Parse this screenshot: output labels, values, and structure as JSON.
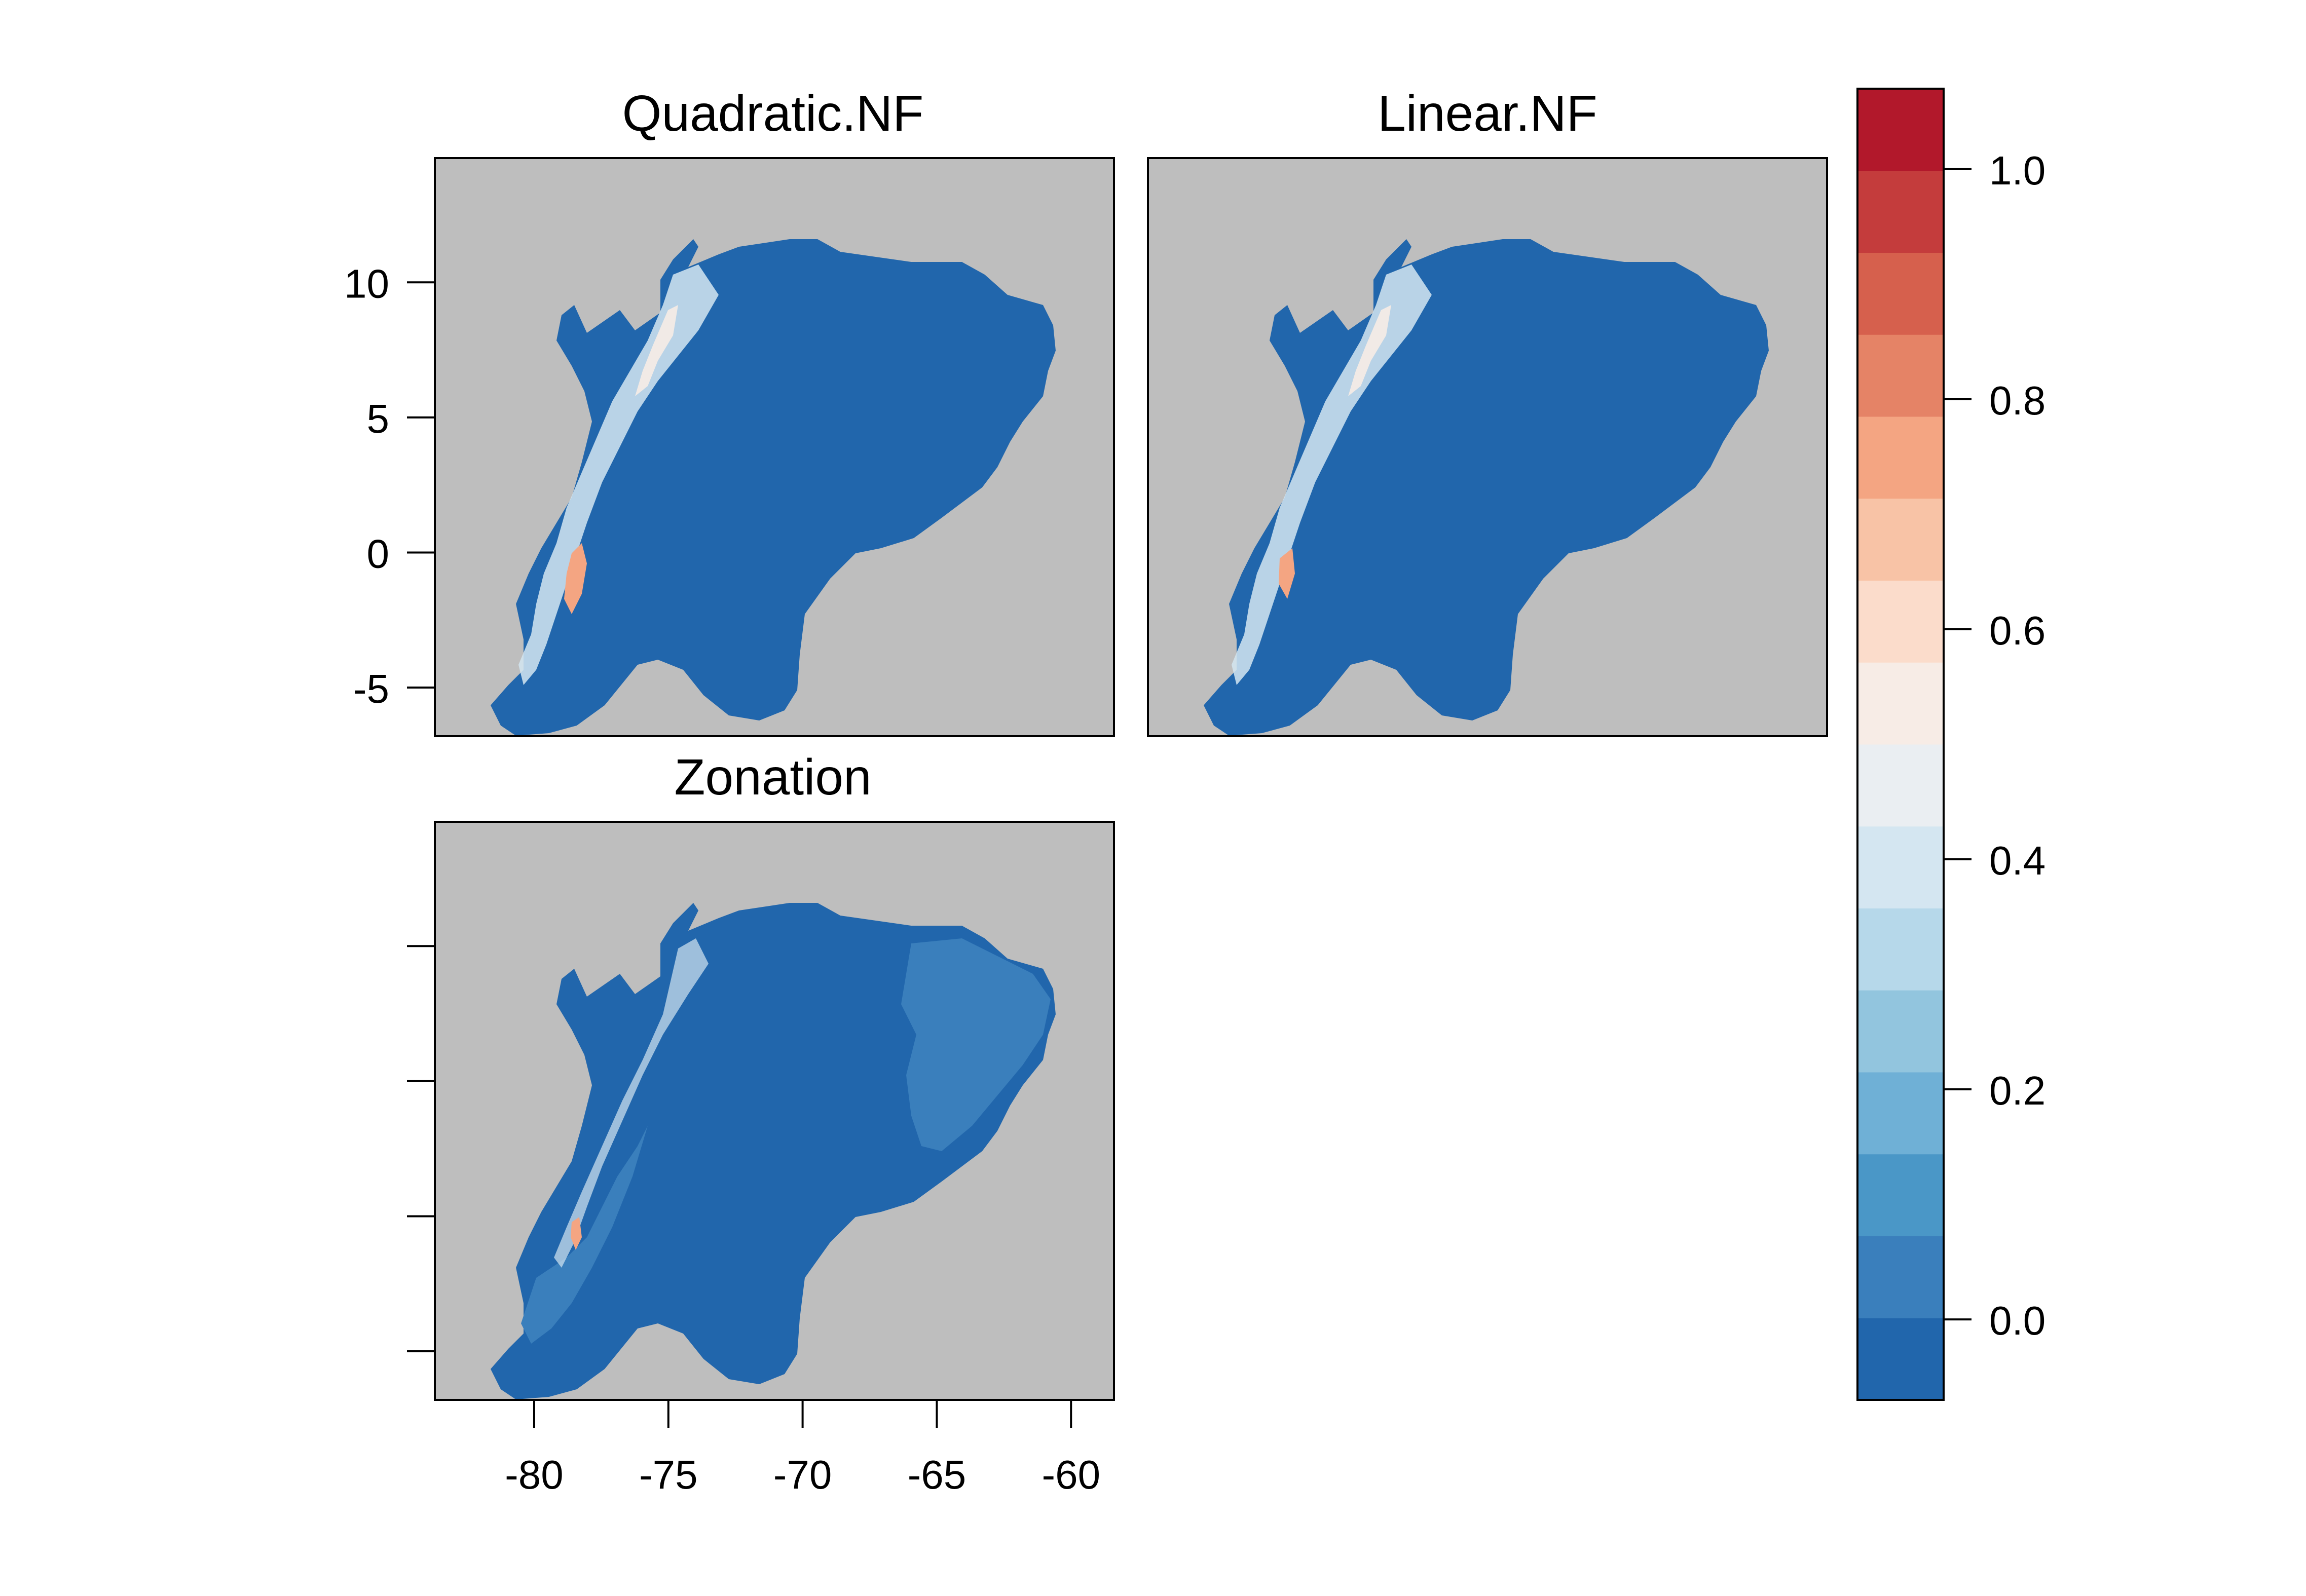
{
  "panels": [
    {
      "title": "Quadratic.NF",
      "variant": "quadratic"
    },
    {
      "title": "Linear.NF",
      "variant": "linear"
    },
    {
      "title": "Zonation",
      "variant": "zonation"
    }
  ],
  "y_ticks": [
    {
      "value": 10,
      "label": "10"
    },
    {
      "value": 5,
      "label": "5"
    },
    {
      "value": 0,
      "label": "0"
    },
    {
      "value": -5,
      "label": "-5"
    }
  ],
  "x_ticks": [
    {
      "value": -80,
      "label": "-80"
    },
    {
      "value": -75,
      "label": "-75"
    },
    {
      "value": -70,
      "label": "-70"
    },
    {
      "value": -65,
      "label": "-65"
    },
    {
      "value": -60,
      "label": "-60"
    }
  ],
  "x_range": [
    -83.7,
    -58.4
  ],
  "y_range": [
    -6.8,
    14.6
  ],
  "colorbar": {
    "range": [
      -0.07,
      1.07
    ],
    "ticks": [
      {
        "value": 0.0,
        "label": "0.0"
      },
      {
        "value": 0.2,
        "label": "0.2"
      },
      {
        "value": 0.4,
        "label": "0.4"
      },
      {
        "value": 0.6,
        "label": "0.6"
      },
      {
        "value": 0.8,
        "label": "0.8"
      },
      {
        "value": 1.0,
        "label": "1.0"
      }
    ],
    "bands": [
      "#2166ac",
      "#3a7fbc",
      "#4a97c7",
      "#6fb0d6",
      "#92c5de",
      "#b6d8ea",
      "#d4e6f1",
      "#eaeef2",
      "#f7ece6",
      "#fbdccb",
      "#f8c3a6",
      "#f4a582",
      "#e58366",
      "#d6604d",
      "#c43c3c",
      "#b2182b"
    ]
  },
  "colors": {
    "background": "#bebebe",
    "land_low": "#2166ac",
    "land_zonation_low": "#3a7fbc",
    "ridge_light": "#d4e6f1",
    "ridge_high": "#f4a582"
  }
}
